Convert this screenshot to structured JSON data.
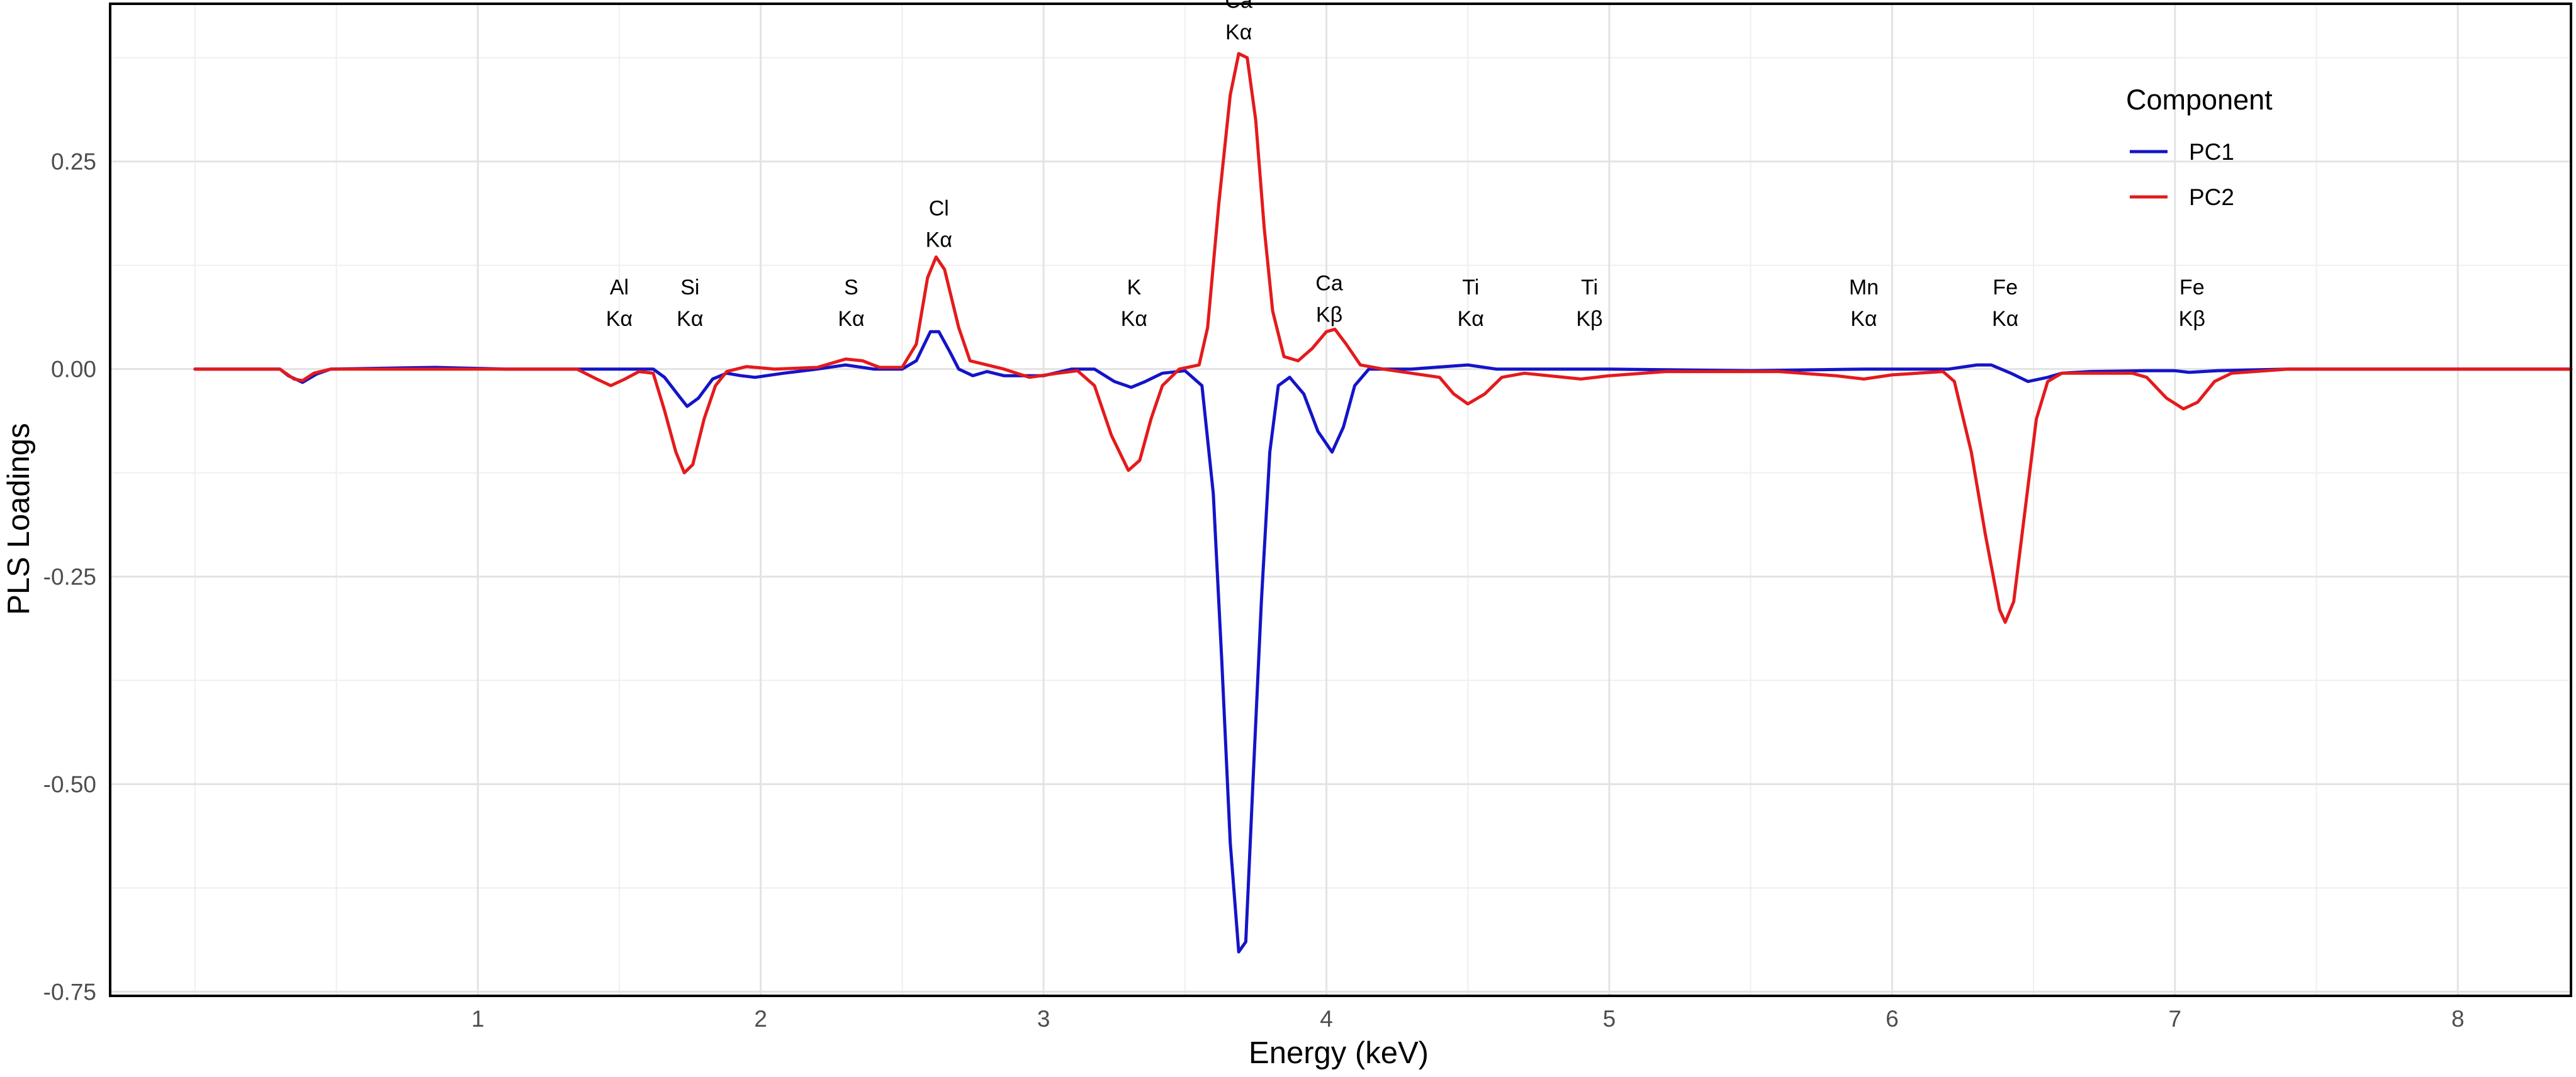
{
  "chart_data": {
    "type": "line",
    "title": "",
    "xlabel": "Energy (keV)",
    "ylabel": "PLS Loadings",
    "xlim": [
      -0.3,
      8.4
    ],
    "ylim": [
      -0.755,
      0.44
    ],
    "xticks": [
      {
        "value": 1,
        "label": "1"
      },
      {
        "value": 2,
        "label": "2"
      },
      {
        "value": 3,
        "label": "3"
      },
      {
        "value": 4,
        "label": "4"
      },
      {
        "value": 5,
        "label": "5"
      },
      {
        "value": 6,
        "label": "6"
      },
      {
        "value": 7,
        "label": "7"
      },
      {
        "value": 8,
        "label": "8"
      }
    ],
    "yticks": [
      {
        "value": 0.25,
        "label": "0.25"
      },
      {
        "value": 0.0,
        "label": "0.00"
      },
      {
        "value": -0.25,
        "label": "-0.25"
      },
      {
        "value": -0.5,
        "label": "-0.50"
      },
      {
        "value": -0.75,
        "label": "-0.75"
      }
    ],
    "grid": true,
    "legend": {
      "title": "Component",
      "position": "top-right"
    },
    "series": [
      {
        "name": "PC1",
        "color": "#1414c8",
        "points": [
          [
            0.0,
            0.0
          ],
          [
            0.3,
            0.0
          ],
          [
            0.33,
            -0.008
          ],
          [
            0.38,
            -0.016
          ],
          [
            0.43,
            -0.006
          ],
          [
            0.48,
            0.0
          ],
          [
            0.85,
            0.002
          ],
          [
            1.1,
            0.0
          ],
          [
            1.5,
            0.0
          ],
          [
            1.62,
            0.0
          ],
          [
            1.66,
            -0.01
          ],
          [
            1.71,
            -0.032
          ],
          [
            1.74,
            -0.045
          ],
          [
            1.78,
            -0.035
          ],
          [
            1.83,
            -0.012
          ],
          [
            1.88,
            -0.005
          ],
          [
            1.93,
            -0.008
          ],
          [
            1.98,
            -0.01
          ],
          [
            2.08,
            -0.005
          ],
          [
            2.2,
            0.0
          ],
          [
            2.3,
            0.005
          ],
          [
            2.4,
            0.0
          ],
          [
            2.5,
            0.0
          ],
          [
            2.55,
            0.01
          ],
          [
            2.6,
            0.045
          ],
          [
            2.63,
            0.045
          ],
          [
            2.67,
            0.02
          ],
          [
            2.7,
            0.0
          ],
          [
            2.75,
            -0.008
          ],
          [
            2.8,
            -0.003
          ],
          [
            2.86,
            -0.008
          ],
          [
            3.0,
            -0.008
          ],
          [
            3.1,
            0.0
          ],
          [
            3.18,
            0.0
          ],
          [
            3.25,
            -0.015
          ],
          [
            3.31,
            -0.022
          ],
          [
            3.36,
            -0.015
          ],
          [
            3.42,
            -0.005
          ],
          [
            3.5,
            -0.002
          ],
          [
            3.56,
            -0.02
          ],
          [
            3.6,
            -0.15
          ],
          [
            3.63,
            -0.35
          ],
          [
            3.66,
            -0.57
          ],
          [
            3.69,
            -0.702
          ],
          [
            3.715,
            -0.69
          ],
          [
            3.74,
            -0.5
          ],
          [
            3.77,
            -0.28
          ],
          [
            3.8,
            -0.1
          ],
          [
            3.83,
            -0.02
          ],
          [
            3.87,
            -0.01
          ],
          [
            3.92,
            -0.03
          ],
          [
            3.97,
            -0.075
          ],
          [
            4.02,
            -0.1
          ],
          [
            4.06,
            -0.07
          ],
          [
            4.1,
            -0.02
          ],
          [
            4.15,
            0.0
          ],
          [
            4.3,
            0.0
          ],
          [
            4.5,
            0.005
          ],
          [
            4.6,
            0.0
          ],
          [
            5.0,
            0.0
          ],
          [
            5.5,
            -0.002
          ],
          [
            5.9,
            0.0
          ],
          [
            6.0,
            0.0
          ],
          [
            6.2,
            0.0
          ],
          [
            6.3,
            0.005
          ],
          [
            6.35,
            0.005
          ],
          [
            6.42,
            -0.005
          ],
          [
            6.48,
            -0.015
          ],
          [
            6.55,
            -0.01
          ],
          [
            6.6,
            -0.005
          ],
          [
            6.7,
            -0.003
          ],
          [
            6.9,
            -0.002
          ],
          [
            7.0,
            -0.002
          ],
          [
            7.05,
            -0.004
          ],
          [
            7.15,
            -0.002
          ],
          [
            7.4,
            0.0
          ],
          [
            8.4,
            0.0
          ]
        ]
      },
      {
        "name": "PC2",
        "color": "#e41a1c",
        "points": [
          [
            0.0,
            0.0
          ],
          [
            0.3,
            0.0
          ],
          [
            0.35,
            -0.012
          ],
          [
            0.38,
            -0.014
          ],
          [
            0.42,
            -0.005
          ],
          [
            0.48,
            0.0
          ],
          [
            1.0,
            0.0
          ],
          [
            1.35,
            0.0
          ],
          [
            1.42,
            -0.012
          ],
          [
            1.47,
            -0.02
          ],
          [
            1.52,
            -0.012
          ],
          [
            1.57,
            -0.003
          ],
          [
            1.62,
            -0.005
          ],
          [
            1.66,
            -0.05
          ],
          [
            1.7,
            -0.1
          ],
          [
            1.73,
            -0.125
          ],
          [
            1.76,
            -0.115
          ],
          [
            1.8,
            -0.06
          ],
          [
            1.84,
            -0.02
          ],
          [
            1.88,
            -0.003
          ],
          [
            1.95,
            0.003
          ],
          [
            2.05,
            0.0
          ],
          [
            2.2,
            0.002
          ],
          [
            2.3,
            0.012
          ],
          [
            2.36,
            0.01
          ],
          [
            2.42,
            0.002
          ],
          [
            2.5,
            0.002
          ],
          [
            2.55,
            0.03
          ],
          [
            2.59,
            0.11
          ],
          [
            2.62,
            0.135
          ],
          [
            2.65,
            0.12
          ],
          [
            2.7,
            0.05
          ],
          [
            2.74,
            0.01
          ],
          [
            2.8,
            0.005
          ],
          [
            2.86,
            0.0
          ],
          [
            2.95,
            -0.01
          ],
          [
            3.05,
            -0.005
          ],
          [
            3.12,
            -0.002
          ],
          [
            3.18,
            -0.02
          ],
          [
            3.24,
            -0.08
          ],
          [
            3.3,
            -0.122
          ],
          [
            3.34,
            -0.11
          ],
          [
            3.38,
            -0.06
          ],
          [
            3.42,
            -0.02
          ],
          [
            3.48,
            0.0
          ],
          [
            3.55,
            0.005
          ],
          [
            3.58,
            0.05
          ],
          [
            3.62,
            0.2
          ],
          [
            3.66,
            0.33
          ],
          [
            3.69,
            0.38
          ],
          [
            3.72,
            0.375
          ],
          [
            3.75,
            0.3
          ],
          [
            3.78,
            0.17
          ],
          [
            3.81,
            0.07
          ],
          [
            3.85,
            0.015
          ],
          [
            3.9,
            0.01
          ],
          [
            3.95,
            0.025
          ],
          [
            4.0,
            0.045
          ],
          [
            4.03,
            0.048
          ],
          [
            4.07,
            0.03
          ],
          [
            4.12,
            0.005
          ],
          [
            4.2,
            0.0
          ],
          [
            4.4,
            -0.01
          ],
          [
            4.45,
            -0.03
          ],
          [
            4.5,
            -0.042
          ],
          [
            4.56,
            -0.03
          ],
          [
            4.62,
            -0.01
          ],
          [
            4.7,
            -0.005
          ],
          [
            4.9,
            -0.012
          ],
          [
            5.0,
            -0.008
          ],
          [
            5.2,
            -0.003
          ],
          [
            5.6,
            -0.003
          ],
          [
            5.8,
            -0.008
          ],
          [
            5.9,
            -0.012
          ],
          [
            6.0,
            -0.007
          ],
          [
            6.18,
            -0.003
          ],
          [
            6.22,
            -0.015
          ],
          [
            6.28,
            -0.1
          ],
          [
            6.33,
            -0.2
          ],
          [
            6.38,
            -0.29
          ],
          [
            6.4,
            -0.305
          ],
          [
            6.43,
            -0.28
          ],
          [
            6.47,
            -0.17
          ],
          [
            6.51,
            -0.06
          ],
          [
            6.55,
            -0.015
          ],
          [
            6.6,
            -0.005
          ],
          [
            6.85,
            -0.005
          ],
          [
            6.9,
            -0.01
          ],
          [
            6.97,
            -0.035
          ],
          [
            7.03,
            -0.048
          ],
          [
            7.08,
            -0.04
          ],
          [
            7.14,
            -0.015
          ],
          [
            7.2,
            -0.005
          ],
          [
            7.4,
            0.0
          ],
          [
            8.4,
            0.0
          ]
        ]
      }
    ],
    "annotations": [
      {
        "x": 1.5,
        "y": 0.09,
        "line1": "Al",
        "line2": "Kα"
      },
      {
        "x": 1.75,
        "y": 0.09,
        "line1": "Si",
        "line2": "Kα"
      },
      {
        "x": 2.32,
        "y": 0.09,
        "line1": "S",
        "line2": "Kα"
      },
      {
        "x": 2.63,
        "y": 0.185,
        "line1": "Cl",
        "line2": "Kα"
      },
      {
        "x": 3.32,
        "y": 0.09,
        "line1": "K",
        "line2": "Kα"
      },
      {
        "x": 3.69,
        "y": 0.435,
        "line1": "Ca",
        "line2": "Kα"
      },
      {
        "x": 4.01,
        "y": 0.095,
        "line1": "Ca",
        "line2": "Kβ"
      },
      {
        "x": 4.51,
        "y": 0.09,
        "line1": "Ti",
        "line2": "Kα"
      },
      {
        "x": 4.93,
        "y": 0.09,
        "line1": "Ti",
        "line2": "Kβ"
      },
      {
        "x": 5.9,
        "y": 0.09,
        "line1": "Mn",
        "line2": "Kα"
      },
      {
        "x": 6.4,
        "y": 0.09,
        "line1": "Fe",
        "line2": "Kα"
      },
      {
        "x": 7.06,
        "y": 0.09,
        "line1": "Fe",
        "line2": "Kβ"
      }
    ]
  }
}
